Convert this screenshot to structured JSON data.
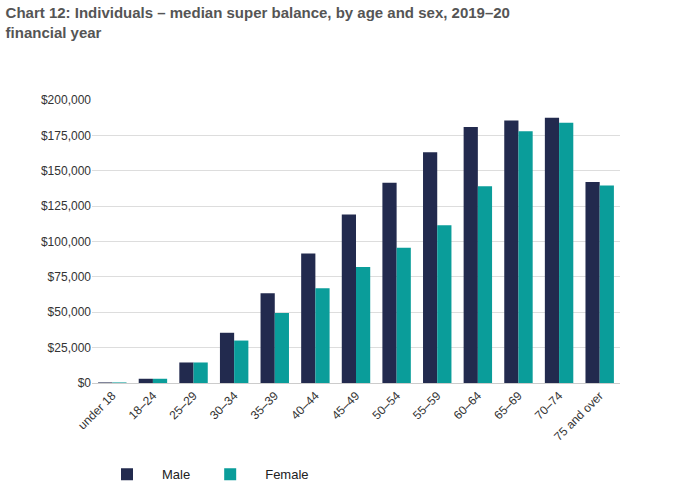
{
  "chart_data": {
    "type": "bar",
    "title": "Chart 12: Individuals – median super balance, by age and sex, 2019–20 financial year",
    "categories": [
      "under 18",
      "18–24",
      "25–29",
      "30–34",
      "35–39",
      "40–44",
      "45–49",
      "50–54",
      "55–59",
      "60–64",
      "65–69",
      "70–74",
      "75 and over"
    ],
    "series": [
      {
        "name": "Male",
        "color": "#222a4e",
        "values": [
          400,
          3000,
          14500,
          35500,
          63500,
          91500,
          119000,
          141500,
          163000,
          181000,
          185500,
          187500,
          142000
        ]
      },
      {
        "name": "Female",
        "color": "#0a9d9a",
        "values": [
          400,
          3000,
          14500,
          30000,
          49500,
          67000,
          82000,
          95500,
          111500,
          139000,
          178000,
          184000,
          139500
        ]
      }
    ],
    "ylim": [
      0,
      200000
    ],
    "yticks": [
      {
        "value": 0,
        "label": "$0"
      },
      {
        "value": 25000,
        "label": "$25,000"
      },
      {
        "value": 50000,
        "label": "$50,000"
      },
      {
        "value": 75000,
        "label": "$75,000"
      },
      {
        "value": 100000,
        "label": "$100,000"
      },
      {
        "value": 125000,
        "label": "$125,000"
      },
      {
        "value": 150000,
        "label": "$150,000"
      },
      {
        "value": 175000,
        "label": "$175,000"
      },
      {
        "value": 200000,
        "label": "$200,000"
      }
    ],
    "grid": true,
    "legend": "bottom left"
  }
}
